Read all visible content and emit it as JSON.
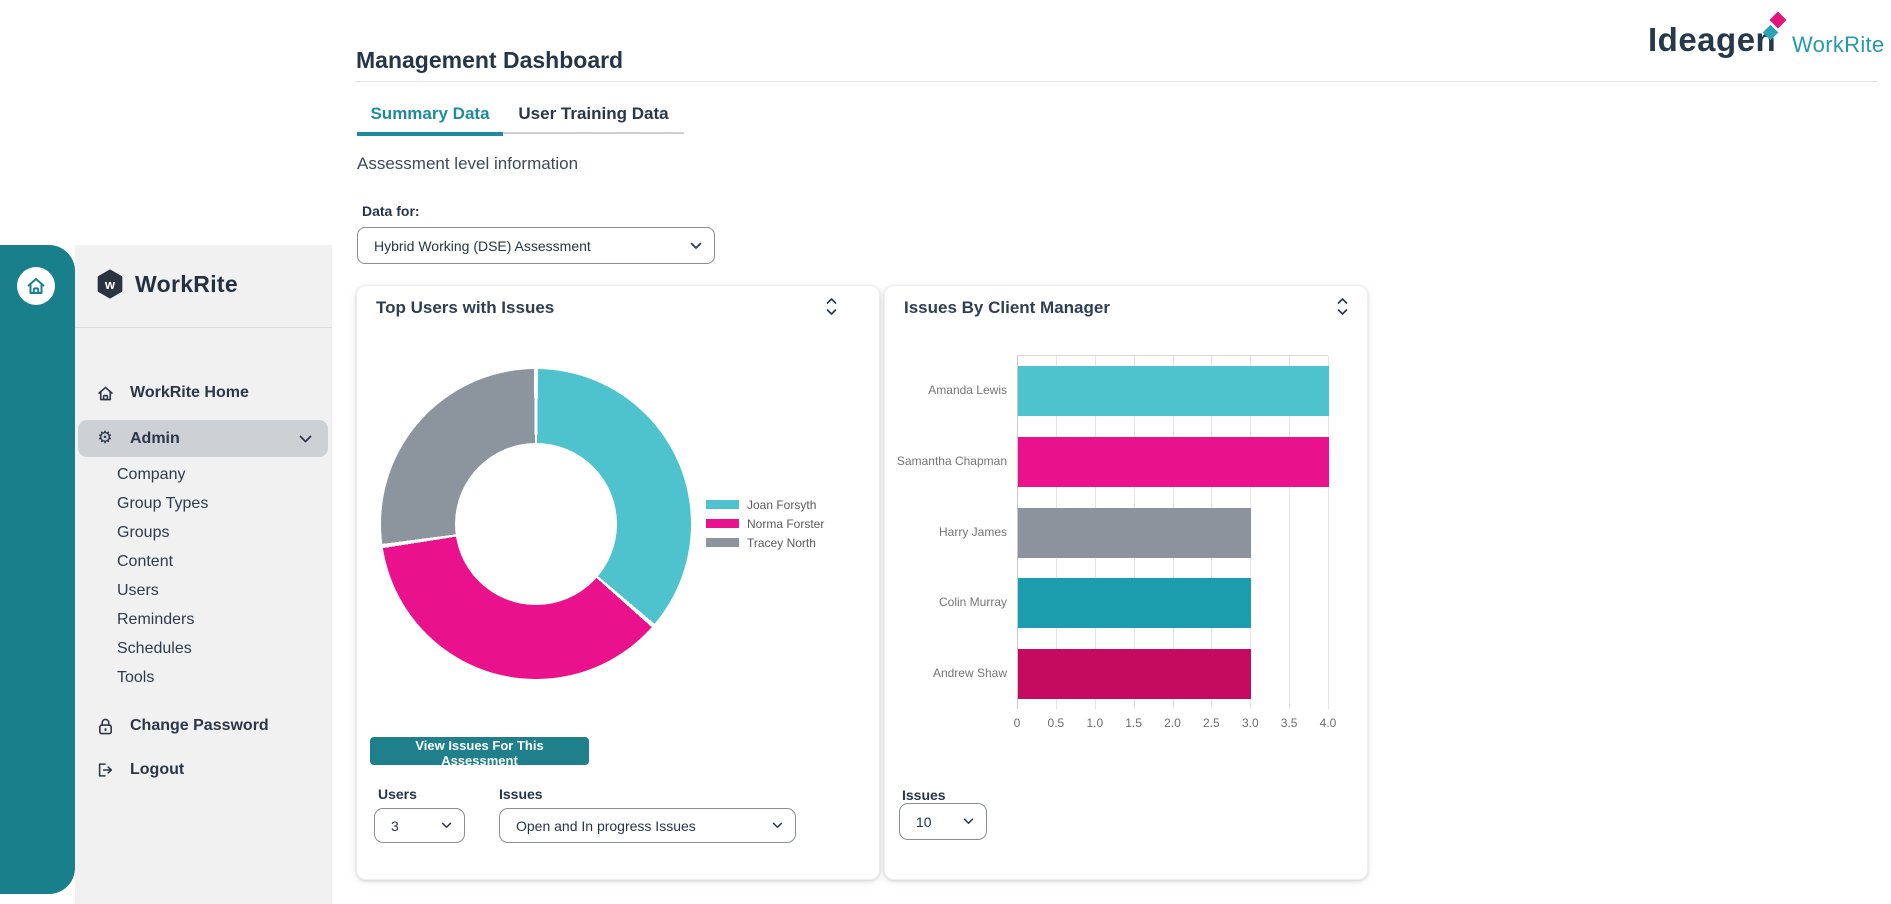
{
  "brand": {
    "sidebar_logo_text": "WorkRite",
    "header_logo_primary": "Ideagen",
    "header_logo_secondary": "WorkRite"
  },
  "sidebar": {
    "items_top": [
      {
        "label": "WorkRite Home",
        "icon": "home"
      },
      {
        "label": "Admin",
        "icon": "gear",
        "active": true,
        "expanded": true
      }
    ],
    "admin_subitems": [
      "Company",
      "Group Types",
      "Groups",
      "Content",
      "Users",
      "Reminders",
      "Schedules",
      "Tools"
    ],
    "items_bottom": [
      {
        "label": "Change Password",
        "icon": "lock"
      },
      {
        "label": "Logout",
        "icon": "logout"
      }
    ]
  },
  "header": {
    "title": "Management Dashboard"
  },
  "tabs": [
    {
      "label": "Summary Data",
      "active": true
    },
    {
      "label": "User Training Data",
      "active": false
    }
  ],
  "section": {
    "subtitle": "Assessment level information",
    "data_for_label": "Data for:",
    "assessment_select_value": "Hybrid Working (DSE) Assessment"
  },
  "cards": {
    "top_users": {
      "title": "Top Users with Issues",
      "button_label": "View Issues For This Assessment",
      "users_label": "Users",
      "users_value": "3",
      "issues_label": "Issues",
      "issues_value": "Open and In progress Issues"
    },
    "issues_by_manager": {
      "title": "Issues By Client Manager",
      "issues_label": "Issues",
      "issues_value": "10"
    }
  },
  "chart_data": [
    {
      "type": "pie",
      "title": "Top Users with Issues",
      "labels": [
        "Joan Forsyth",
        "Norma Forster",
        "Tracey North"
      ],
      "values": [
        4,
        4,
        3
      ],
      "colors": [
        "#4EC3CD",
        "#E9118C",
        "#8C959E"
      ],
      "donut_hole_ratio": 0.52,
      "legend_position": "right"
    },
    {
      "type": "bar",
      "orientation": "horizontal",
      "title": "Issues By Client Manager",
      "categories": [
        "Amanda Lewis",
        "Samantha Chapman",
        "Harry James",
        "Colin Murray",
        "Andrew Shaw"
      ],
      "values": [
        4,
        4,
        3,
        3,
        3
      ],
      "colors": [
        "#4EC3CD",
        "#E9118C",
        "#8C939C",
        "#1B9DAE",
        "#C50B60"
      ],
      "xlim": [
        0,
        4
      ],
      "xticks": [
        0,
        0.5,
        1,
        1.5,
        2,
        2.5,
        3,
        3.5,
        4
      ],
      "xtick_labels": [
        "0",
        "0.5",
        "1.0",
        "1.5",
        "2.0",
        "2.5",
        "3.0",
        "3.5",
        "4.0"
      ],
      "grid": true,
      "legend_position": "none"
    }
  ],
  "colors": {
    "rail_teal": "#19808B",
    "button_teal": "#1F7F8A",
    "tab_active_teal": "#1E8C9B",
    "navy_text": "#263649",
    "brand_pink": "#E6137D",
    "brand_teal": "#2AA4B5"
  }
}
